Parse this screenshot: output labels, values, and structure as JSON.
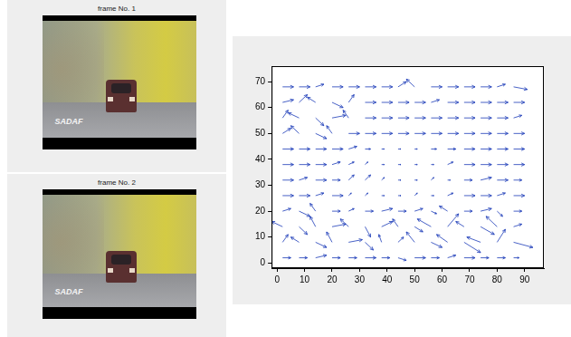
{
  "frames": [
    {
      "title": "frame No. 1",
      "caption": "SADAF"
    },
    {
      "title": "frame No. 2",
      "caption": "SADAF"
    }
  ],
  "chart_data": {
    "type": "quiver",
    "color": "#1a3ab8",
    "grid": false,
    "xlim": [
      -2,
      97
    ],
    "ylim": [
      -2,
      76
    ],
    "xticks": [
      0,
      10,
      20,
      30,
      40,
      50,
      60,
      70,
      80,
      90
    ],
    "yticks": [
      0,
      10,
      20,
      30,
      40,
      50,
      60,
      70
    ],
    "x": [
      2,
      8,
      14,
      20,
      26,
      32,
      38,
      44,
      50,
      56,
      62,
      68,
      74,
      80,
      86
    ],
    "y": [
      2,
      8,
      14,
      20,
      26,
      32,
      38,
      44,
      50,
      56,
      62,
      68
    ],
    "u": [
      [
        3,
        3,
        4,
        3,
        3,
        4,
        3,
        3,
        4,
        3,
        3,
        4,
        3,
        3,
        2
      ],
      [
        2,
        -3,
        4,
        -2,
        5,
        3,
        -1,
        2,
        -3,
        4,
        -4,
        6,
        -5,
        3,
        7
      ],
      [
        -4,
        3,
        -2,
        5,
        -3,
        2,
        4,
        -2,
        3,
        -5,
        4,
        -3,
        5,
        -4,
        3
      ],
      [
        3,
        4,
        -2,
        3,
        2,
        3,
        4,
        3,
        3,
        2,
        -3,
        3,
        4,
        2,
        3
      ],
      [
        4,
        4,
        3,
        4,
        1,
        1,
        1,
        1,
        1,
        1,
        2,
        4,
        4,
        3,
        4
      ],
      [
        4,
        3,
        4,
        3,
        2,
        2,
        1,
        1,
        1,
        1,
        1,
        3,
        4,
        4,
        3
      ],
      [
        4,
        4,
        4,
        3,
        2,
        1,
        1,
        1,
        1,
        1,
        2,
        4,
        4,
        4,
        4
      ],
      [
        4,
        4,
        4,
        4,
        3,
        2,
        1,
        1,
        1,
        2,
        3,
        4,
        4,
        4,
        4
      ],
      [
        3,
        -3,
        4,
        -2,
        4,
        4,
        4,
        4,
        4,
        4,
        4,
        4,
        4,
        4,
        4
      ],
      [
        2,
        -4,
        3,
        5,
        -2,
        4,
        4,
        4,
        4,
        4,
        4,
        4,
        4,
        4,
        3
      ],
      [
        4,
        3,
        -3,
        4,
        2,
        4,
        4,
        4,
        4,
        3,
        4,
        4,
        4,
        4,
        4
      ],
      [
        4,
        4,
        3,
        4,
        4,
        4,
        4,
        3,
        -3,
        4,
        4,
        4,
        4,
        3,
        5
      ]
    ],
    "v": [
      [
        0,
        0,
        1,
        0,
        0,
        0,
        0,
        -1,
        0,
        0,
        1,
        0,
        0,
        0,
        0
      ],
      [
        3,
        2,
        -2,
        4,
        1,
        -3,
        3,
        2,
        4,
        -2,
        3,
        -4,
        2,
        5,
        -2
      ],
      [
        2,
        -3,
        4,
        1,
        3,
        -4,
        2,
        3,
        -2,
        3,
        5,
        2,
        -3,
        4,
        1
      ],
      [
        1,
        -2,
        3,
        0,
        1,
        0,
        1,
        0,
        1,
        -1,
        2,
        0,
        1,
        -2,
        0
      ],
      [
        0,
        0,
        1,
        0,
        1,
        1,
        0,
        0,
        1,
        0,
        1,
        0,
        0,
        1,
        0
      ],
      [
        0,
        1,
        0,
        0,
        2,
        2,
        1,
        0,
        0,
        1,
        0,
        0,
        1,
        0,
        0
      ],
      [
        0,
        0,
        0,
        1,
        1,
        1,
        0,
        0,
        0,
        0,
        1,
        0,
        0,
        0,
        0
      ],
      [
        0,
        0,
        0,
        0,
        1,
        0,
        0,
        0,
        0,
        0,
        0,
        0,
        0,
        0,
        0
      ],
      [
        2,
        3,
        -2,
        3,
        0,
        0,
        0,
        0,
        0,
        0,
        0,
        0,
        0,
        0,
        0
      ],
      [
        3,
        2,
        -3,
        1,
        3,
        0,
        0,
        0,
        0,
        0,
        0,
        0,
        0,
        0,
        1
      ],
      [
        1,
        3,
        2,
        -2,
        3,
        0,
        0,
        0,
        0,
        1,
        0,
        0,
        0,
        0,
        0
      ],
      [
        0,
        0,
        1,
        0,
        0,
        0,
        0,
        2,
        3,
        0,
        0,
        0,
        0,
        1,
        -1
      ]
    ]
  }
}
